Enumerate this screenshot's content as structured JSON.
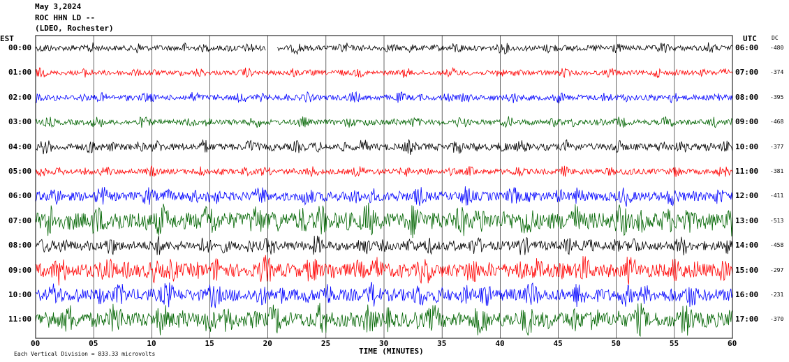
{
  "header": {
    "date": "May 3,2024",
    "station": "ROC HHN LD --",
    "network": "(LDEO, Rochester)"
  },
  "axis_labels": {
    "left_zone": "EST",
    "right_zone": "UTC",
    "dc_heading": "DC",
    "xlabel": "TIME (MINUTES)",
    "footnote": "Each Vertical Division = 833.33 microvolts"
  },
  "colors": {
    "black": "#000000",
    "red": "#ff0000",
    "blue": "#0000ff",
    "green": "#006400"
  },
  "chart_data": {
    "type": "line",
    "title": "May 3,2024 ROC HHN LD -- (LDEO, Rochester)",
    "xlabel": "TIME (MINUTES)",
    "xlim": [
      0,
      60
    ],
    "x_ticks": [
      0,
      5,
      10,
      15,
      20,
      25,
      30,
      35,
      40,
      45,
      50,
      55,
      60
    ],
    "grid": "vertical",
    "series": [
      {
        "name": "00:00",
        "utc": "06:00",
        "dc": "-480",
        "color": "black",
        "amplitude": 0.35,
        "gap": [
          19.8,
          20.8
        ]
      },
      {
        "name": "01:00",
        "utc": "07:00",
        "dc": "-374",
        "color": "red",
        "amplitude": 0.3
      },
      {
        "name": "02:00",
        "utc": "08:00",
        "dc": "-395",
        "color": "blue",
        "amplitude": 0.35
      },
      {
        "name": "03:00",
        "utc": "09:00",
        "dc": "-468",
        "color": "green",
        "amplitude": 0.35
      },
      {
        "name": "04:00",
        "utc": "10:00",
        "dc": "-377",
        "color": "black",
        "amplitude": 0.45
      },
      {
        "name": "05:00",
        "utc": "11:00",
        "dc": "-381",
        "color": "red",
        "amplitude": 0.35
      },
      {
        "name": "06:00",
        "utc": "12:00",
        "dc": "-411",
        "color": "blue",
        "amplitude": 0.6
      },
      {
        "name": "07:00",
        "utc": "13:00",
        "dc": "-513",
        "color": "green",
        "amplitude": 1.1
      },
      {
        "name": "08:00",
        "utc": "14:00",
        "dc": "-458",
        "color": "black",
        "amplitude": 0.6
      },
      {
        "name": "09:00",
        "utc": "15:00",
        "dc": "-297",
        "color": "red",
        "amplitude": 0.9
      },
      {
        "name": "10:00",
        "utc": "16:00",
        "dc": "-231",
        "color": "blue",
        "amplitude": 0.8
      },
      {
        "name": "11:00",
        "utc": "17:00",
        "dc": "-370",
        "color": "green",
        "amplitude": 1.0
      }
    ]
  }
}
